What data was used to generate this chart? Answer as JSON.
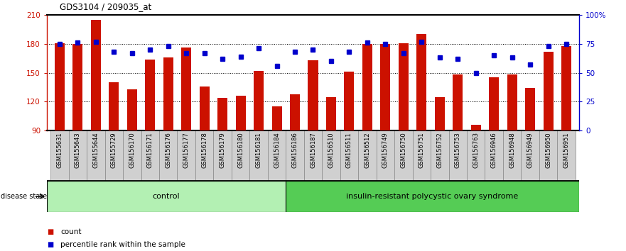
{
  "title": "GDS3104 / 209035_at",
  "samples": [
    "GSM155631",
    "GSM155643",
    "GSM155644",
    "GSM155729",
    "GSM156170",
    "GSM156171",
    "GSM156176",
    "GSM156177",
    "GSM156178",
    "GSM156179",
    "GSM156180",
    "GSM156181",
    "GSM156184",
    "GSM156186",
    "GSM156187",
    "GSM156510",
    "GSM156511",
    "GSM156512",
    "GSM156749",
    "GSM156750",
    "GSM156751",
    "GSM156752",
    "GSM156753",
    "GSM156763",
    "GSM156946",
    "GSM156948",
    "GSM156949",
    "GSM156950",
    "GSM156951"
  ],
  "bar_values": [
    181,
    180,
    205,
    140,
    133,
    164,
    166,
    176,
    136,
    124,
    126,
    152,
    115,
    128,
    163,
    125,
    151,
    180,
    180,
    181,
    190,
    125,
    148,
    96,
    145,
    148,
    134,
    172,
    178
  ],
  "percentile_values": [
    75,
    76,
    77,
    68,
    67,
    70,
    73,
    67,
    67,
    62,
    64,
    71,
    56,
    68,
    70,
    60,
    68,
    76,
    75,
    67,
    77,
    63,
    62,
    50,
    65,
    63,
    57,
    73,
    75
  ],
  "n_control": 13,
  "ylim_left": [
    90,
    210
  ],
  "ylim_right": [
    0,
    100
  ],
  "yticks_left": [
    90,
    120,
    150,
    180,
    210
  ],
  "yticks_right": [
    0,
    25,
    50,
    75,
    100
  ],
  "yticklabels_right": [
    "0",
    "25",
    "50",
    "75",
    "100%"
  ],
  "bar_color": "#cc1100",
  "dot_color": "#0000cc",
  "control_color": "#b3f0b3",
  "disease_color": "#55cc55",
  "xlabel_bg_color": "#d0d0d0",
  "control_label": "control",
  "disease_label": "insulin-resistant polycystic ovary syndrome",
  "disease_state_label": "disease state",
  "legend_bar": "count",
  "legend_dot": "percentile rank within the sample",
  "grid_color": "#000000",
  "top_border_color": "#000000",
  "label_fontsize": 6.0,
  "tick_fontsize": 7.5
}
